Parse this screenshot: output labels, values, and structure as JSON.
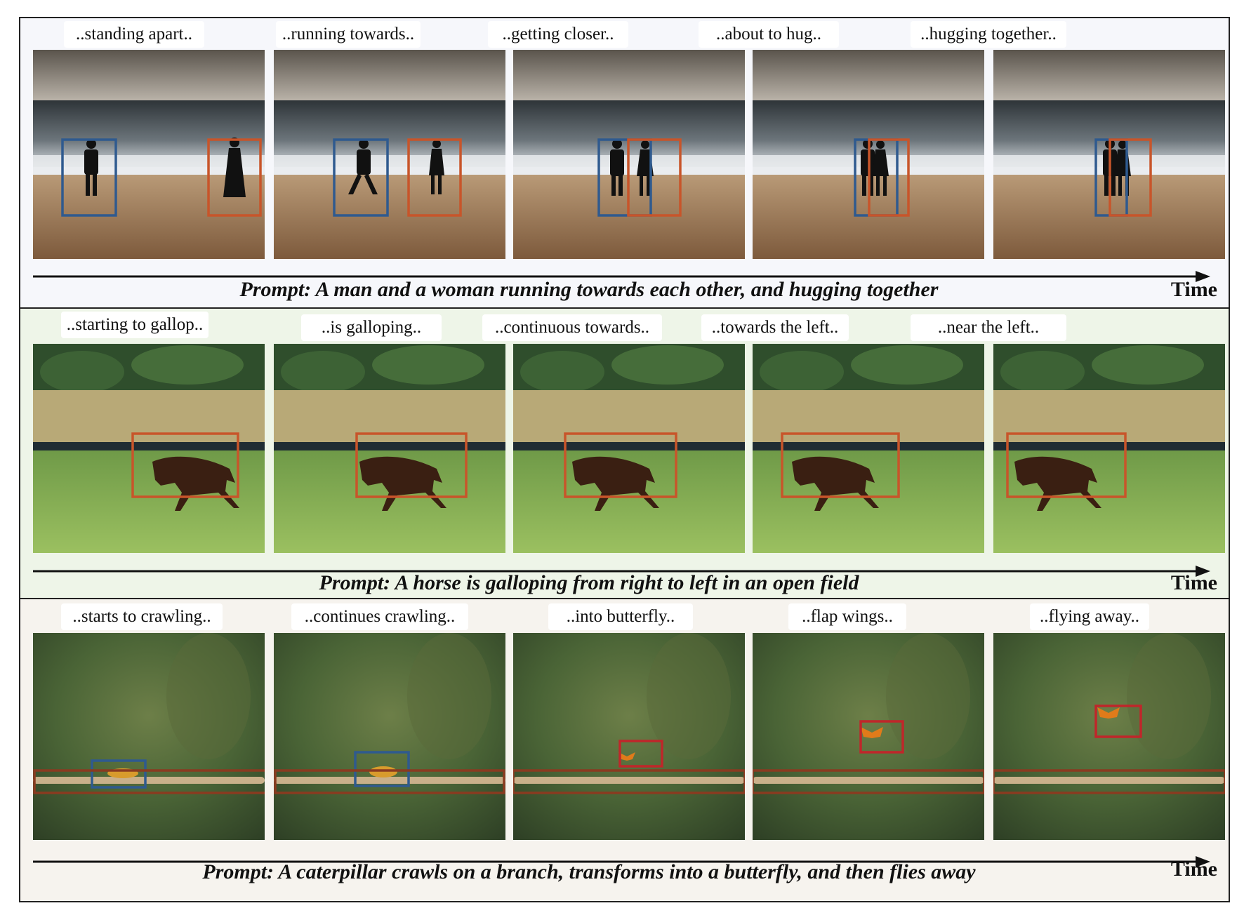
{
  "rows": [
    {
      "captions": [
        "..standing apart..",
        "..running towards..",
        "..getting closer..",
        "..about to hug..",
        "..hugging together.."
      ],
      "prompt": "Prompt: A man and a woman running towards each other, and hugging together",
      "time_label": "Time"
    },
    {
      "captions": [
        "..starting to gallop..",
        "..is galloping..",
        "..continuous towards..",
        "..towards the left..",
        "..near the left.."
      ],
      "prompt": "Prompt: A horse is galloping from right to left in an open field",
      "time_label": "Time"
    },
    {
      "captions": [
        "..starts to crawling..",
        "..continues crawling..",
        "..into butterfly..",
        "..flap wings..",
        "..flying away.."
      ],
      "prompt": "Prompt: A caterpillar crawls on a branch, transforms into a butterfly, and then flies away",
      "time_label": "Time"
    }
  ],
  "colors": {
    "box_blue": "#2f5a8f",
    "box_orange": "#c8552a",
    "box_red": "#c0262a",
    "box_brown": "#8a3b20"
  }
}
